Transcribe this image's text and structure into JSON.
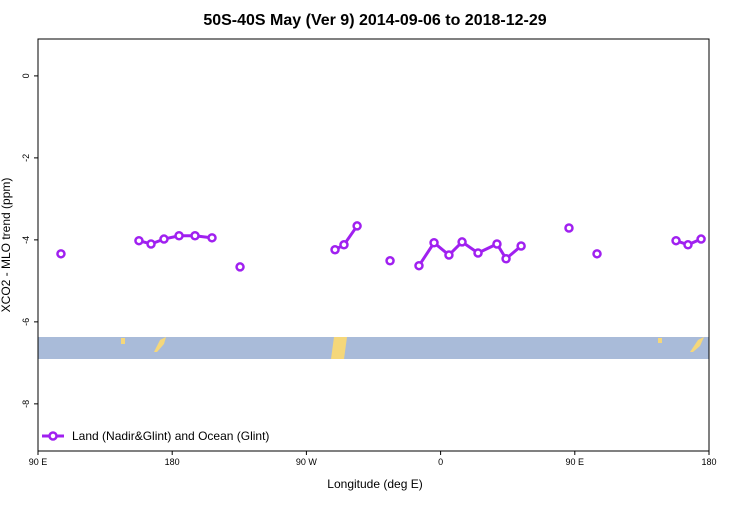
{
  "chart_data": {
    "type": "line",
    "title": "50S-40S May (Ver 9)   2014-09-06 to 2018-12-29",
    "xlabel": "Longitude (deg E)",
    "ylabel": "XCO2 - MLO trend (ppm)",
    "xlim": [
      90,
      540
    ],
    "ylim": [
      -9.15,
      0.9
    ],
    "xticks": [
      {
        "value": 90,
        "label": "90 E"
      },
      {
        "value": 180,
        "label": "180"
      },
      {
        "value": 270,
        "label": "90 W"
      },
      {
        "value": 360,
        "label": "0"
      },
      {
        "value": 450,
        "label": "90 E"
      },
      {
        "value": 540,
        "label": "180"
      }
    ],
    "yticks": [
      0,
      -2,
      -4,
      -6,
      -8
    ],
    "legend": "bottom-left",
    "series": [
      {
        "name": "Land (Nadir&Glint) and Ocean (Glint)",
        "color": "#a020f0",
        "x": [
          105.4,
          null,
          157.7,
          165.8,
          174.5,
          184.6,
          195.3,
          206.7,
          null,
          225.5,
          null,
          289.2,
          295.2,
          304.0,
          null,
          326.1,
          null,
          345.5,
          355.6,
          365.6,
          374.4,
          385.1,
          397.8,
          403.9,
          414.0,
          null,
          446.1,
          null,
          464.9,
          null,
          517.9,
          525.9,
          534.7
        ],
        "values": [
          -4.34,
          null,
          -4.02,
          -4.1,
          -3.98,
          -3.9,
          -3.9,
          -3.95,
          null,
          -4.66,
          null,
          -4.24,
          -4.12,
          -3.66,
          null,
          -4.51,
          null,
          -4.63,
          -4.07,
          -4.37,
          -4.05,
          -4.32,
          -4.1,
          -4.46,
          -4.15,
          null,
          -3.71,
          null,
          -4.34,
          null,
          -4.02,
          -4.12,
          -3.98
        ]
      }
    ]
  }
}
